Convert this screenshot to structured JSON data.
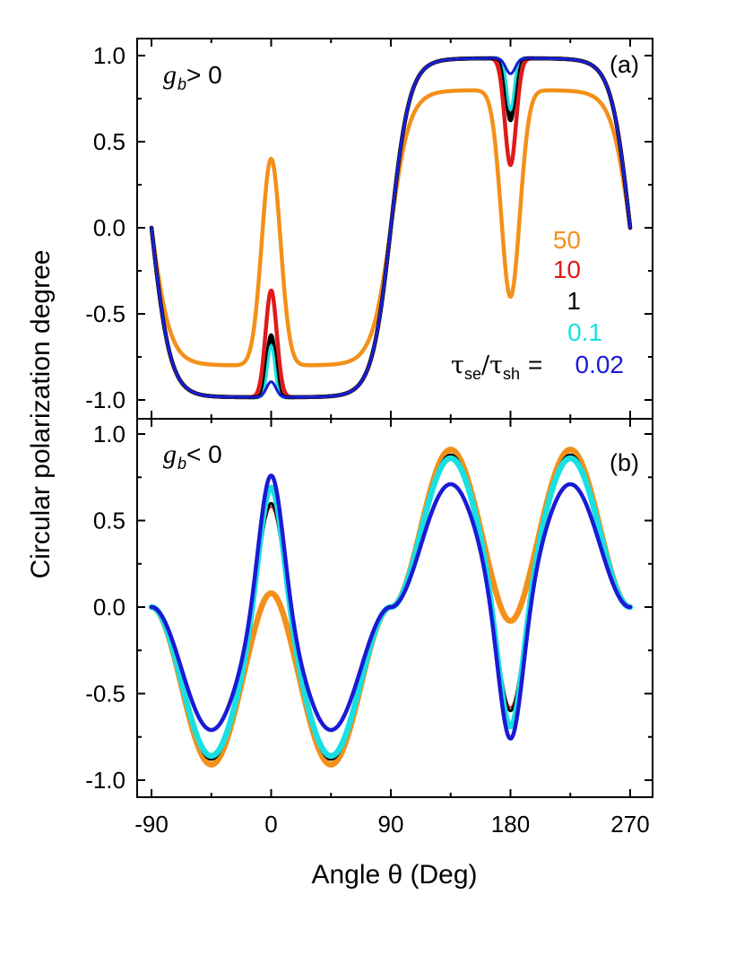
{
  "chart_data": [
    {
      "type": "line",
      "panel_label": "(a)",
      "condition": {
        "symbol": "g",
        "subscript": "b",
        "relation": "> 0"
      },
      "xlabel": "Angle θ (Deg)",
      "ylabel": "Circular polarization degree",
      "xlim": [
        -95,
        275
      ],
      "ylim": [
        -1.1,
        1.1
      ],
      "xticks": [
        "-90",
        "0",
        "90",
        "180",
        "270"
      ],
      "yticks": [
        "-1.0",
        "-0.5",
        "0.0",
        "0.5",
        "1.0"
      ],
      "grid": false,
      "legend_position": "right-center",
      "legend_title": {
        "tau": "τ",
        "sub1": "se",
        "slash": "/",
        "sub2": "sh",
        "eq": "="
      },
      "series": [
        {
          "name": "50",
          "color": "#f39019",
          "width": 4.5,
          "dip_depth": 1.2,
          "dip_width": 7,
          "x_sample": [
            -90,
            -45,
            0,
            45,
            90,
            135,
            180,
            225,
            270
          ],
          "y": [
            0.0,
            -0.79,
            0.5,
            -0.79,
            0.0,
            0.79,
            -0.5,
            0.79,
            0.0
          ]
        },
        {
          "name": "10",
          "color": "#e01a1a",
          "width": 4.5,
          "dip_depth": 0.62,
          "dip_width": 4.2,
          "x_sample": [
            -90,
            -45,
            0,
            45,
            90,
            135,
            180,
            225,
            270
          ],
          "y": [
            0.0,
            -0.97,
            -0.35,
            -0.97,
            0.0,
            0.97,
            0.35,
            0.97,
            0.0
          ]
        },
        {
          "name": "1",
          "color": "#000000",
          "width": 4.5,
          "dip_depth": 0.36,
          "dip_width": 3.1,
          "x_sample": [
            -90,
            -45,
            0,
            45,
            90,
            135,
            180,
            225,
            270
          ],
          "y": [
            0.0,
            -0.98,
            -0.62,
            -0.98,
            0.0,
            0.98,
            0.62,
            0.98,
            0.0
          ]
        },
        {
          "name": "0.1",
          "color": "#19e0e0",
          "width": 3.0,
          "dip_depth": 0.3,
          "dip_width": 2.7,
          "x_sample": [
            -90,
            -45,
            0,
            45,
            90,
            135,
            180,
            225,
            270
          ],
          "y": [
            0.0,
            -0.98,
            -0.68,
            -0.98,
            0.0,
            0.98,
            0.68,
            0.98,
            0.0
          ]
        },
        {
          "name": "0.02",
          "color": "#1a1ad6",
          "width": 3.0,
          "dip_depth": 0.09,
          "dip_width": 3.5,
          "x_sample": [
            -90,
            -45,
            0,
            45,
            90,
            135,
            180,
            225,
            270
          ],
          "y": [
            0.0,
            -0.98,
            -0.89,
            -0.98,
            0.0,
            0.98,
            0.89,
            0.98,
            0.0
          ]
        }
      ]
    },
    {
      "type": "line",
      "panel_label": "(b)",
      "condition": {
        "symbol": "g",
        "subscript": "b",
        "relation": "< 0"
      },
      "xlabel": "Angle θ (Deg)",
      "ylabel": "Circular polarization degree",
      "xlim": [
        -95,
        275
      ],
      "ylim": [
        -1.1,
        1.1
      ],
      "xticks": [
        "-90",
        "0",
        "90",
        "180",
        "270"
      ],
      "yticks": [
        "-1.0",
        "-0.5",
        "0.0",
        "0.5",
        "1.0"
      ],
      "grid": false,
      "series": [
        {
          "name": "50",
          "color": "#f39019",
          "width": 6.5,
          "amp": 0.91,
          "peak": 0.08,
          "x_sample": [
            -90,
            -40,
            0,
            40,
            90,
            140,
            180,
            220,
            270
          ],
          "y": [
            0.0,
            -0.72,
            0.08,
            -0.72,
            0.0,
            0.72,
            -0.08,
            0.72,
            0.0
          ]
        },
        {
          "name": "10",
          "color": "#e01a1a",
          "width": 2.0,
          "amp": 0.88,
          "peak": 0.58,
          "x_sample": [
            -90,
            -40,
            0,
            40,
            90,
            140,
            180,
            220,
            270
          ],
          "y": [
            0.0,
            -0.7,
            0.58,
            -0.7,
            0.0,
            0.7,
            -0.58,
            0.7,
            0.0
          ]
        },
        {
          "name": "1",
          "color": "#000000",
          "width": 3.0,
          "amp": 0.88,
          "peak": 0.6,
          "x_sample": [
            -90,
            -40,
            0,
            40,
            90,
            140,
            180,
            220,
            270
          ],
          "y": [
            0.0,
            -0.7,
            0.6,
            -0.7,
            0.0,
            0.7,
            -0.6,
            0.7,
            0.0
          ]
        },
        {
          "name": "0.1",
          "color": "#19e0e0",
          "width": 6.5,
          "amp": 0.86,
          "peak": 0.69,
          "x_sample": [
            -90,
            -40,
            0,
            40,
            90,
            140,
            180,
            220,
            270
          ],
          "y": [
            0.0,
            -0.68,
            0.69,
            -0.68,
            0.0,
            0.68,
            -0.69,
            0.68,
            0.0
          ]
        },
        {
          "name": "0.02",
          "color": "#1a1ad6",
          "width": 4.5,
          "amp": 0.71,
          "peak": 0.76,
          "x_sample": [
            -90,
            -40,
            0,
            40,
            90,
            140,
            180,
            220,
            270
          ],
          "y": [
            0.0,
            -0.57,
            0.76,
            -0.57,
            0.0,
            0.57,
            -0.76,
            0.57,
            0.0
          ]
        }
      ]
    }
  ]
}
